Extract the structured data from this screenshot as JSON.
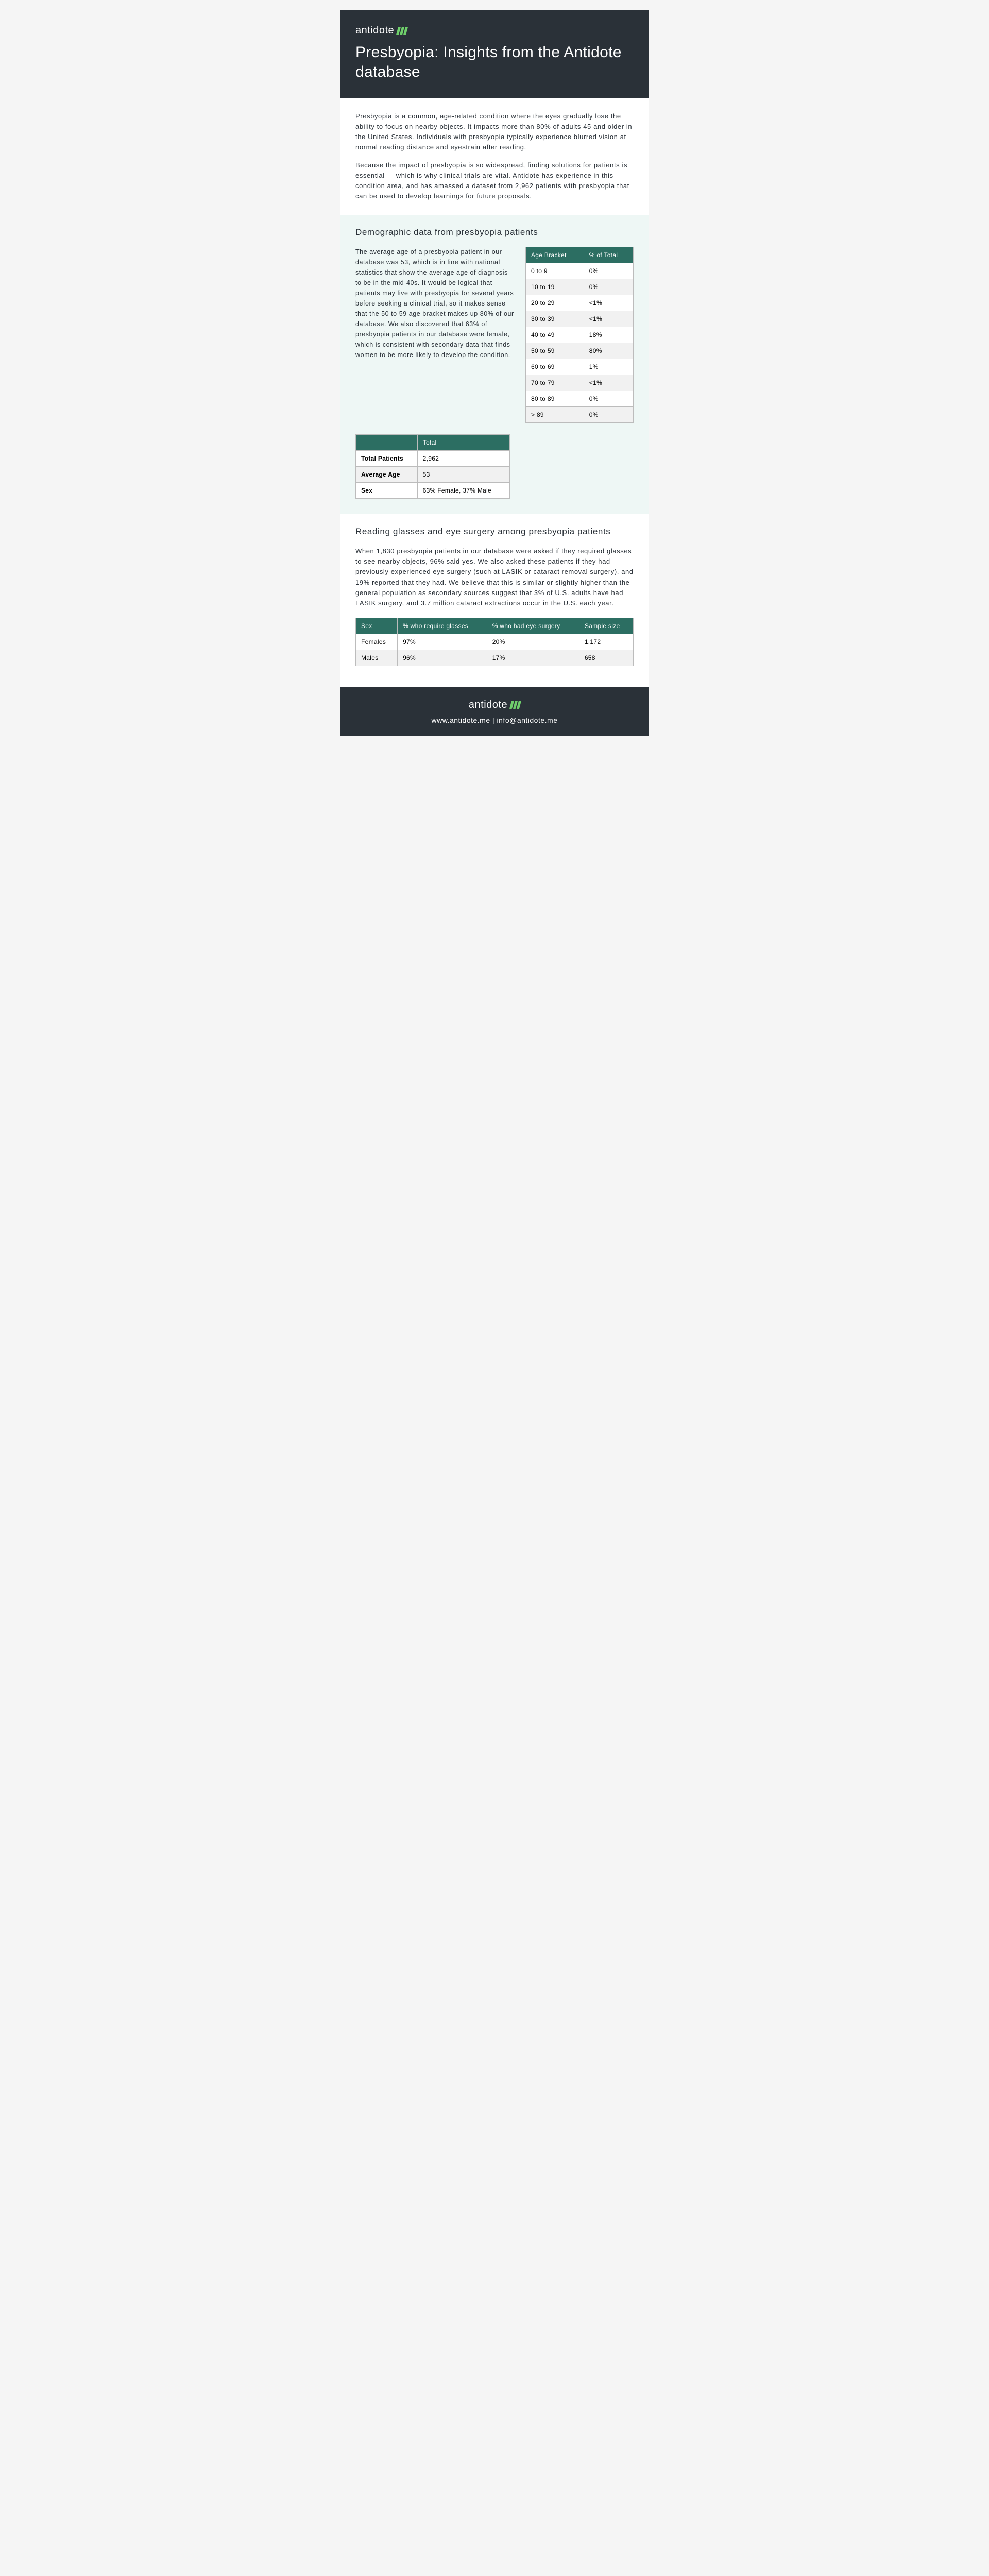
{
  "brand": "antidote",
  "title": "Presbyopia: Insights from the Antidote database",
  "intro": {
    "p1": "Presbyopia is a common, age-related condition where the eyes gradually lose the ability to focus on nearby objects. It impacts more than 80% of adults 45 and older in the United States. Individuals with presbyopia typically experience blurred vision at normal reading distance and eyestrain after reading.",
    "p2": "Because the impact of presbyopia is so widespread, finding solutions for patients is essential — which is why clinical trials are vital. Antidote has experience in this condition area, and has amassed a dataset from 2,962 patients with presbyopia that can be used to develop learnings for future proposals."
  },
  "demo": {
    "heading": "Demographic data from presbyopia patients",
    "text": "The average age of a presbyopia patient in our database was 53, which is in line with national statistics that show the average age of diagnosis to be in the mid-40s. It would be logical that patients may live with presbyopia for several years before seeking a clinical trial, so it makes sense that the 50 to 59 age bracket makes up 80% of our database. We also discovered that 63% of presbyopia patients in our database were female, which is consistent with secondary data that finds women to be more likely to develop the condition.",
    "age_table": {
      "headers": {
        "bracket": "Age Bracket",
        "pct": "% of Total"
      },
      "rows": [
        {
          "bracket": "0 to 9",
          "pct": "0%"
        },
        {
          "bracket": "10 to 19",
          "pct": "0%"
        },
        {
          "bracket": "20 to 29",
          "pct": "<1%"
        },
        {
          "bracket": "30 to 39",
          "pct": "<1%"
        },
        {
          "bracket": "40 to 49",
          "pct": "18%"
        },
        {
          "bracket": "50 to 59",
          "pct": "80%"
        },
        {
          "bracket": "60 to 69",
          "pct": "1%"
        },
        {
          "bracket": "70 to 79",
          "pct": "<1%"
        },
        {
          "bracket": "80 to 89",
          "pct": "0%"
        },
        {
          "bracket": "> 89",
          "pct": "0%"
        }
      ]
    },
    "summary_table": {
      "header": "Total",
      "rows": [
        {
          "label": "Total Patients",
          "value": "2,962"
        },
        {
          "label": "Average Age",
          "value": "53"
        },
        {
          "label": "Sex",
          "value": "63% Female, 37% Male"
        }
      ]
    }
  },
  "surgery": {
    "heading": "Reading glasses and eye surgery among presbyopia patients",
    "text": "When 1,830 presbyopia patients in our database were asked if they required glasses to see nearby objects, 96% said yes. We also asked these patients if they had previously experienced eye surgery (such at LASIK or cataract removal surgery), and 19% reported that they had. We believe that this is similar or slightly higher than the general population as secondary sources suggest that 3% of U.S. adults have had LASIK surgery, and 3.7 million cataract extractions occur in the U.S. each year.",
    "table": {
      "headers": {
        "sex": "Sex",
        "glasses": "% who require glasses",
        "surgery": "% who had eye surgery",
        "sample": "Sample size"
      },
      "rows": [
        {
          "sex": "Females",
          "glasses": "97%",
          "surgery": "20%",
          "sample": "1,172"
        },
        {
          "sex": "Males",
          "glasses": "96%",
          "surgery": "17%",
          "sample": "658"
        }
      ]
    }
  },
  "footer": {
    "links": "www.antidote.me | info@antidote.me"
  },
  "colors": {
    "header_bg": "#2a3138",
    "mint_bg": "#eef7f5",
    "table_header_bg": "#2c6e62",
    "accent": "#6fcf6b",
    "border": "#bcbcbc"
  }
}
